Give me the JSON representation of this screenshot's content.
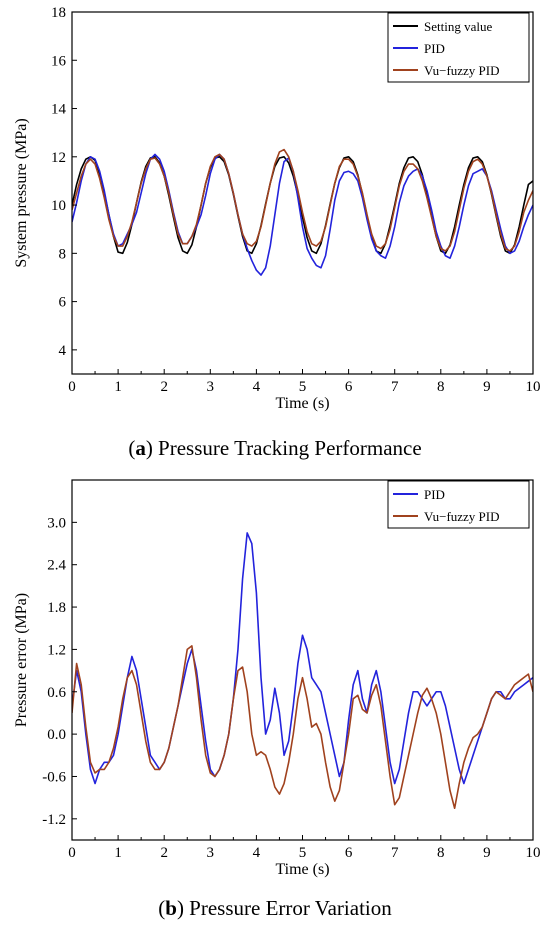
{
  "chart_data": [
    {
      "type": "line",
      "caption_letter": "a",
      "caption_rest": ") Pressure Tracking Performance",
      "caption_open": "(",
      "xlabel": "Time (s)",
      "ylabel": "System pressure (MPa)",
      "xlim": [
        0,
        10
      ],
      "ylim": [
        3,
        18
      ],
      "xticks": [
        "0",
        "1",
        "2",
        "3",
        "4",
        "5",
        "6",
        "7",
        "8",
        "9",
        "10"
      ],
      "yticks": [
        "4",
        "6",
        "8",
        "10",
        "12",
        "14",
        "16",
        "18"
      ],
      "legend_position": "top-right",
      "series": [
        {
          "name": "Setting value",
          "color": "#000000",
          "x": [
            0,
            0.1,
            0.2,
            0.3,
            0.4,
            0.5,
            0.6,
            0.7,
            0.8,
            0.9,
            1.0,
            1.1,
            1.2,
            1.3,
            1.4,
            1.5,
            1.6,
            1.7,
            1.8,
            1.9,
            2.0,
            2.1,
            2.2,
            2.3,
            2.4,
            2.5,
            2.6,
            2.7,
            2.8,
            2.9,
            3.0,
            3.1,
            3.2,
            3.3,
            3.4,
            3.5,
            3.6,
            3.7,
            3.8,
            3.9,
            4.0,
            4.1,
            4.2,
            4.3,
            4.4,
            4.5,
            4.6,
            4.7,
            4.8,
            4.9,
            5.0,
            5.1,
            5.2,
            5.3,
            5.4,
            5.5,
            5.6,
            5.7,
            5.8,
            5.9,
            6.0,
            6.1,
            6.2,
            6.3,
            6.4,
            6.5,
            6.6,
            6.7,
            6.8,
            6.9,
            7.0,
            7.1,
            7.2,
            7.3,
            7.4,
            7.5,
            7.6,
            7.7,
            7.8,
            7.9,
            8.0,
            8.1,
            8.2,
            8.3,
            8.4,
            8.5,
            8.6,
            8.7,
            8.8,
            8.9,
            9.0,
            9.1,
            9.2,
            9.3,
            9.4,
            9.5,
            9.6,
            9.7,
            9.8,
            9.9,
            10.0
          ],
          "y": [
            10.0,
            10.85,
            11.5,
            11.9,
            12.0,
            11.85,
            11.3,
            10.5,
            9.6,
            8.7,
            8.05,
            8.0,
            8.45,
            9.2,
            10.1,
            10.95,
            11.6,
            11.95,
            12.0,
            11.75,
            11.2,
            10.4,
            9.5,
            8.65,
            8.1,
            8.0,
            8.35,
            9.1,
            10.0,
            10.9,
            11.55,
            11.95,
            12.0,
            11.8,
            11.25,
            10.45,
            9.55,
            8.7,
            8.1,
            8.0,
            8.4,
            9.15,
            10.05,
            10.9,
            11.6,
            11.95,
            12.0,
            11.75,
            11.2,
            10.4,
            9.5,
            8.65,
            8.1,
            8.0,
            8.4,
            9.15,
            10.05,
            10.9,
            11.55,
            11.95,
            12.0,
            11.8,
            11.25,
            10.45,
            9.55,
            8.7,
            8.1,
            8.0,
            8.4,
            9.15,
            10.0,
            10.9,
            11.55,
            11.95,
            12.0,
            11.8,
            11.25,
            10.45,
            9.55,
            8.7,
            8.1,
            8.0,
            8.35,
            9.1,
            10.0,
            10.85,
            11.55,
            11.95,
            12.0,
            11.8,
            11.25,
            10.45,
            9.55,
            8.7,
            8.1,
            8.0,
            8.35,
            9.1,
            10.0,
            10.85,
            11.0
          ]
        },
        {
          "name": "PID",
          "color": "#2323dc",
          "x": [
            0,
            0.1,
            0.2,
            0.3,
            0.4,
            0.5,
            0.6,
            0.7,
            0.8,
            0.9,
            1.0,
            1.1,
            1.2,
            1.3,
            1.4,
            1.5,
            1.6,
            1.7,
            1.8,
            1.9,
            2.0,
            2.1,
            2.2,
            2.3,
            2.4,
            2.5,
            2.6,
            2.7,
            2.8,
            2.9,
            3.0,
            3.1,
            3.2,
            3.3,
            3.4,
            3.5,
            3.6,
            3.7,
            3.8,
            3.9,
            4.0,
            4.1,
            4.2,
            4.3,
            4.4,
            4.5,
            4.6,
            4.7,
            4.8,
            4.9,
            5.0,
            5.1,
            5.2,
            5.3,
            5.4,
            5.5,
            5.6,
            5.7,
            5.8,
            5.9,
            6.0,
            6.1,
            6.2,
            6.3,
            6.4,
            6.5,
            6.6,
            6.7,
            6.8,
            6.9,
            7.0,
            7.1,
            7.2,
            7.3,
            7.4,
            7.5,
            7.6,
            7.7,
            7.8,
            7.9,
            8.0,
            8.1,
            8.2,
            8.3,
            8.4,
            8.5,
            8.6,
            8.7,
            8.8,
            8.9,
            9.0,
            9.1,
            9.2,
            9.3,
            9.4,
            9.5,
            9.6,
            9.7,
            9.8,
            9.9,
            10.0
          ],
          "y": [
            9.3,
            10.1,
            11.0,
            11.7,
            12.0,
            11.9,
            11.4,
            10.6,
            9.6,
            8.8,
            8.3,
            8.4,
            8.8,
            9.2,
            9.7,
            10.5,
            11.3,
            11.9,
            12.1,
            11.9,
            11.4,
            10.6,
            9.7,
            8.9,
            8.4,
            8.4,
            8.7,
            9.1,
            9.6,
            10.4,
            11.3,
            11.9,
            12.1,
            11.9,
            11.3,
            10.5,
            9.6,
            8.8,
            8.2,
            7.7,
            7.3,
            7.1,
            7.4,
            8.3,
            9.6,
            10.9,
            11.8,
            11.95,
            11.4,
            10.3,
            9.1,
            8.2,
            7.8,
            7.5,
            7.4,
            7.9,
            9.0,
            10.2,
            11.0,
            11.35,
            11.4,
            11.3,
            11.0,
            10.3,
            9.4,
            8.6,
            8.1,
            7.9,
            7.8,
            8.3,
            9.1,
            10.1,
            10.8,
            11.2,
            11.4,
            11.5,
            11.2,
            10.6,
            9.8,
            8.9,
            8.3,
            7.9,
            7.8,
            8.3,
            9.1,
            10.0,
            10.8,
            11.3,
            11.4,
            11.5,
            11.2,
            10.6,
            9.8,
            9.0,
            8.3,
            8.0,
            8.1,
            8.5,
            9.1,
            9.6,
            10.0
          ]
        },
        {
          "name": "Vu−fuzzy PID",
          "color": "#a0421e",
          "x": [
            0,
            0.1,
            0.2,
            0.3,
            0.4,
            0.5,
            0.6,
            0.7,
            0.8,
            0.9,
            1.0,
            1.1,
            1.2,
            1.3,
            1.4,
            1.5,
            1.6,
            1.7,
            1.8,
            1.9,
            2.0,
            2.1,
            2.2,
            2.3,
            2.4,
            2.5,
            2.6,
            2.7,
            2.8,
            2.9,
            3.0,
            3.1,
            3.2,
            3.3,
            3.4,
            3.5,
            3.6,
            3.7,
            3.8,
            3.9,
            4.0,
            4.1,
            4.2,
            4.3,
            4.4,
            4.5,
            4.6,
            4.7,
            4.8,
            4.9,
            5.0,
            5.1,
            5.2,
            5.3,
            5.4,
            5.5,
            5.6,
            5.7,
            5.8,
            5.9,
            6.0,
            6.1,
            6.2,
            6.3,
            6.4,
            6.5,
            6.6,
            6.7,
            6.8,
            6.9,
            7.0,
            7.1,
            7.2,
            7.3,
            7.4,
            7.5,
            7.6,
            7.7,
            7.8,
            7.9,
            8.0,
            8.1,
            8.2,
            8.3,
            8.4,
            8.5,
            8.6,
            8.7,
            8.8,
            8.9,
            9.0,
            9.1,
            9.2,
            9.3,
            9.4,
            9.5,
            9.6,
            9.7,
            9.8,
            9.9,
            10.0
          ],
          "y": [
            9.8,
            10.5,
            11.2,
            11.7,
            11.9,
            11.7,
            11.1,
            10.3,
            9.4,
            8.7,
            8.3,
            8.3,
            8.7,
            9.3,
            10.1,
            10.9,
            11.5,
            11.9,
            11.95,
            11.7,
            11.2,
            10.5,
            9.6,
            8.8,
            8.4,
            8.4,
            8.7,
            9.2,
            10.0,
            10.9,
            11.6,
            12.0,
            12.1,
            11.9,
            11.3,
            10.5,
            9.6,
            8.8,
            8.4,
            8.3,
            8.5,
            9.1,
            10.0,
            10.9,
            11.7,
            12.2,
            12.3,
            12.0,
            11.4,
            10.6,
            9.7,
            8.9,
            8.4,
            8.3,
            8.5,
            9.1,
            10.0,
            10.9,
            11.6,
            11.9,
            11.9,
            11.7,
            11.2,
            10.5,
            9.6,
            8.8,
            8.3,
            8.2,
            8.4,
            9.0,
            9.9,
            10.8,
            11.4,
            11.7,
            11.7,
            11.5,
            11.0,
            10.3,
            9.5,
            8.7,
            8.2,
            8.1,
            8.3,
            8.9,
            9.8,
            10.7,
            11.4,
            11.8,
            11.9,
            11.7,
            11.2,
            10.5,
            9.6,
            8.8,
            8.2,
            8.1,
            8.3,
            8.9,
            9.7,
            10.2,
            10.6
          ]
        }
      ]
    },
    {
      "type": "line",
      "caption_letter": "b",
      "caption_rest": ") Pressure Error Variation",
      "caption_open": "(",
      "xlabel": "Time (s)",
      "ylabel": "Pressure error (MPa)",
      "xlim": [
        0,
        10
      ],
      "ylim": [
        -1.5,
        3.6
      ],
      "xticks": [
        "0",
        "1",
        "2",
        "3",
        "4",
        "5",
        "6",
        "7",
        "8",
        "9",
        "10"
      ],
      "yticks": [
        "-1.2",
        "-0.6",
        "0.0",
        "0.6",
        "1.2",
        "1.8",
        "2.4",
        "3.0"
      ],
      "ytick_values": [
        -1.2,
        -0.6,
        0.0,
        0.6,
        1.2,
        1.8,
        2.4,
        3.0
      ],
      "legend_position": "top-right",
      "series": [
        {
          "name": "PID",
          "color": "#2323dc",
          "x": [
            0,
            0.1,
            0.2,
            0.3,
            0.4,
            0.5,
            0.6,
            0.7,
            0.8,
            0.9,
            1.0,
            1.1,
            1.2,
            1.3,
            1.4,
            1.5,
            1.6,
            1.7,
            1.8,
            1.9,
            2.0,
            2.1,
            2.2,
            2.3,
            2.4,
            2.5,
            2.6,
            2.7,
            2.8,
            2.9,
            3.0,
            3.1,
            3.2,
            3.3,
            3.4,
            3.5,
            3.6,
            3.7,
            3.8,
            3.9,
            4.0,
            4.1,
            4.2,
            4.3,
            4.4,
            4.5,
            4.6,
            4.7,
            4.8,
            4.9,
            5.0,
            5.1,
            5.2,
            5.3,
            5.4,
            5.5,
            5.6,
            5.7,
            5.8,
            5.9,
            6.0,
            6.1,
            6.2,
            6.3,
            6.4,
            6.5,
            6.6,
            6.7,
            6.8,
            6.9,
            7.0,
            7.1,
            7.2,
            7.3,
            7.4,
            7.5,
            7.6,
            7.7,
            7.8,
            7.9,
            8.0,
            8.1,
            8.2,
            8.3,
            8.4,
            8.5,
            8.6,
            8.7,
            8.8,
            8.9,
            9.0,
            9.1,
            9.2,
            9.3,
            9.4,
            9.5,
            9.6,
            9.7,
            9.8,
            9.9,
            10.0
          ],
          "y": [
            0.4,
            0.9,
            0.6,
            0.0,
            -0.5,
            -0.7,
            -0.5,
            -0.4,
            -0.4,
            -0.3,
            0.0,
            0.4,
            0.8,
            1.1,
            0.9,
            0.5,
            0.1,
            -0.3,
            -0.4,
            -0.5,
            -0.4,
            -0.2,
            0.1,
            0.4,
            0.7,
            1.0,
            1.2,
            0.9,
            0.4,
            -0.1,
            -0.5,
            -0.6,
            -0.5,
            -0.3,
            0.0,
            0.5,
            1.2,
            2.2,
            2.85,
            2.7,
            2.0,
            0.8,
            0.0,
            0.2,
            0.65,
            0.3,
            -0.3,
            -0.1,
            0.4,
            1.0,
            1.4,
            1.2,
            0.8,
            0.7,
            0.6,
            0.3,
            0.0,
            -0.3,
            -0.6,
            -0.4,
            0.2,
            0.7,
            0.9,
            0.5,
            0.3,
            0.7,
            0.9,
            0.6,
            0.1,
            -0.4,
            -0.7,
            -0.5,
            -0.1,
            0.3,
            0.6,
            0.6,
            0.5,
            0.4,
            0.5,
            0.6,
            0.6,
            0.4,
            0.1,
            -0.2,
            -0.5,
            -0.7,
            -0.5,
            -0.3,
            -0.1,
            0.1,
            0.3,
            0.5,
            0.6,
            0.6,
            0.5,
            0.5,
            0.6,
            0.65,
            0.7,
            0.75,
            0.8
          ]
        },
        {
          "name": "Vu−fuzzy PID",
          "color": "#a0421e",
          "x": [
            0,
            0.1,
            0.2,
            0.3,
            0.4,
            0.5,
            0.6,
            0.7,
            0.8,
            0.9,
            1.0,
            1.1,
            1.2,
            1.3,
            1.4,
            1.5,
            1.6,
            1.7,
            1.8,
            1.9,
            2.0,
            2.1,
            2.2,
            2.3,
            2.4,
            2.5,
            2.6,
            2.7,
            2.8,
            2.9,
            3.0,
            3.1,
            3.2,
            3.3,
            3.4,
            3.5,
            3.6,
            3.7,
            3.8,
            3.9,
            4.0,
            4.1,
            4.2,
            4.3,
            4.4,
            4.5,
            4.6,
            4.7,
            4.8,
            4.9,
            5.0,
            5.1,
            5.2,
            5.3,
            5.4,
            5.5,
            5.6,
            5.7,
            5.8,
            5.9,
            6.0,
            6.1,
            6.2,
            6.3,
            6.4,
            6.5,
            6.6,
            6.7,
            6.8,
            6.9,
            7.0,
            7.1,
            7.2,
            7.3,
            7.4,
            7.5,
            7.6,
            7.7,
            7.8,
            7.9,
            8.0,
            8.1,
            8.2,
            8.3,
            8.4,
            8.5,
            8.6,
            8.7,
            8.8,
            8.9,
            9.0,
            9.1,
            9.2,
            9.3,
            9.4,
            9.5,
            9.6,
            9.7,
            9.8,
            9.9,
            10.0
          ],
          "y": [
            0.3,
            1.0,
            0.7,
            0.1,
            -0.4,
            -0.55,
            -0.5,
            -0.5,
            -0.4,
            -0.2,
            0.1,
            0.5,
            0.8,
            0.9,
            0.7,
            0.3,
            -0.1,
            -0.4,
            -0.5,
            -0.5,
            -0.4,
            -0.2,
            0.1,
            0.4,
            0.8,
            1.2,
            1.25,
            0.8,
            0.2,
            -0.3,
            -0.55,
            -0.6,
            -0.5,
            -0.3,
            0.0,
            0.5,
            0.9,
            0.95,
            0.6,
            0.0,
            -0.3,
            -0.25,
            -0.3,
            -0.5,
            -0.75,
            -0.85,
            -0.7,
            -0.4,
            0.0,
            0.5,
            0.8,
            0.5,
            0.1,
            0.15,
            0.0,
            -0.4,
            -0.75,
            -0.95,
            -0.8,
            -0.4,
            0.0,
            0.5,
            0.55,
            0.35,
            0.3,
            0.55,
            0.7,
            0.4,
            -0.1,
            -0.6,
            -1.0,
            -0.9,
            -0.6,
            -0.3,
            0.0,
            0.3,
            0.55,
            0.65,
            0.5,
            0.3,
            0.0,
            -0.4,
            -0.8,
            -1.05,
            -0.7,
            -0.4,
            -0.2,
            -0.05,
            0.0,
            0.1,
            0.3,
            0.5,
            0.6,
            0.55,
            0.5,
            0.6,
            0.7,
            0.75,
            0.8,
            0.85,
            0.6
          ]
        }
      ]
    }
  ]
}
